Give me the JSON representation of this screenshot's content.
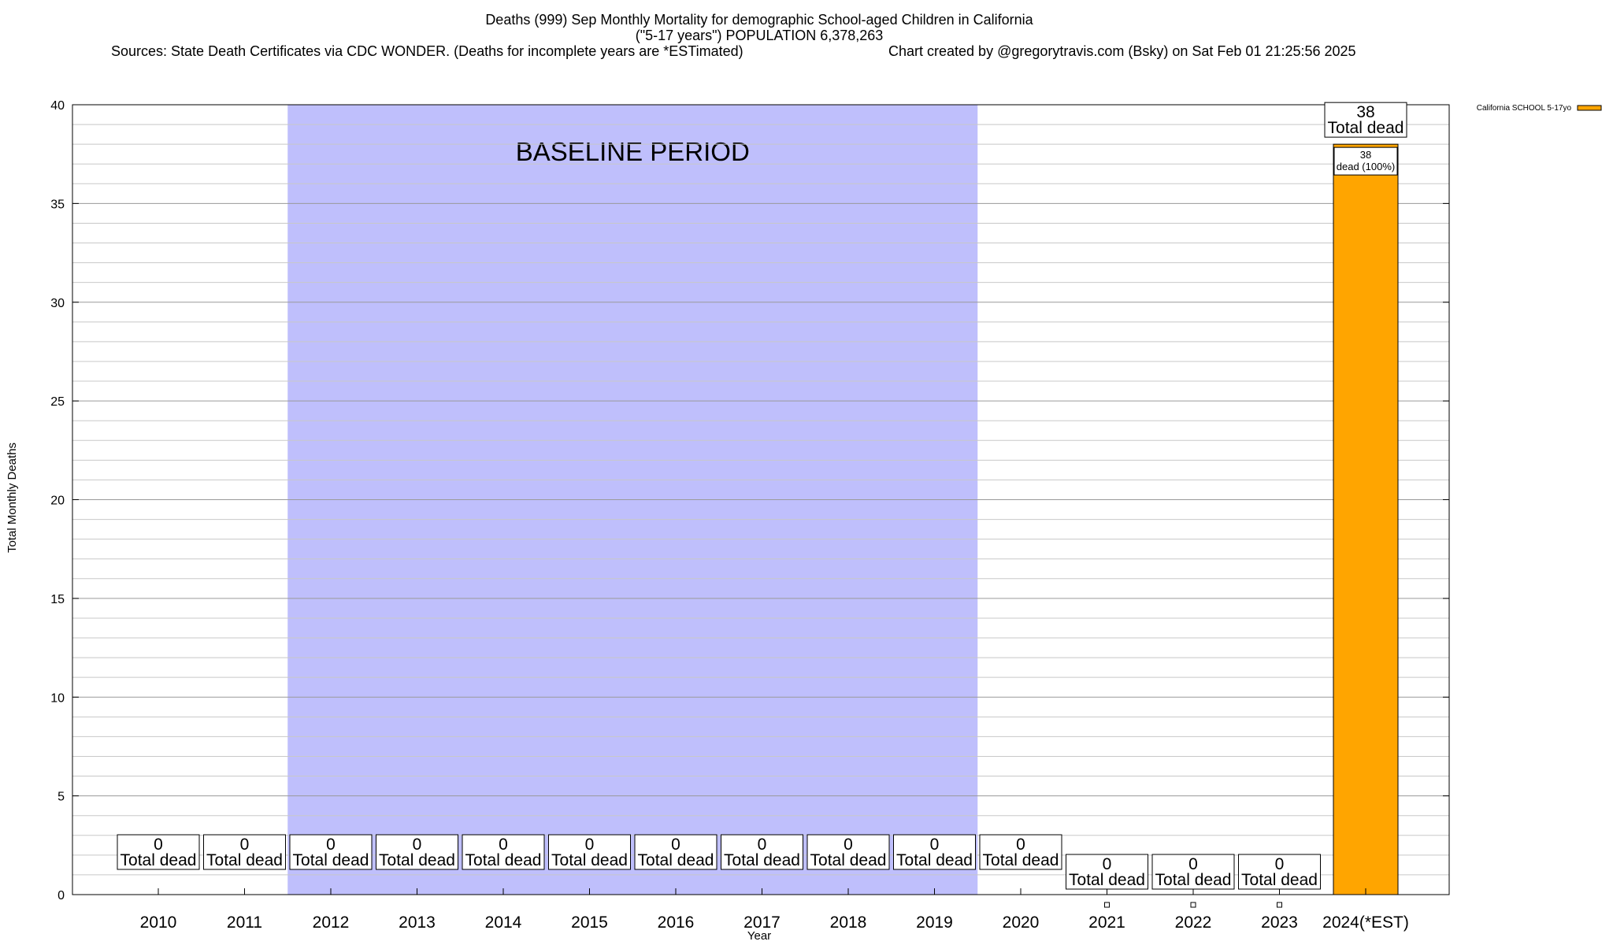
{
  "chart_data": {
    "type": "bar",
    "title_lines": [
      "Deaths (999) Sep Monthly Mortality for demographic School-aged Children in California",
      "(\"5-17 years\") POPULATION 6,378,263"
    ],
    "sources_text": "Sources: State Death Certificates via CDC WONDER. (Deaths for incomplete years are *ESTimated)",
    "credit_text": "Chart created by @gregorytravis.com (Bsky) on Sat Feb 01 21:25:56 2025",
    "xlabel": "Year",
    "ylabel": "Total Monthly Deaths",
    "ylim": [
      0,
      40
    ],
    "y_ticks": [
      0,
      5,
      10,
      15,
      20,
      25,
      30,
      35,
      40
    ],
    "categories": [
      "2010",
      "2011",
      "2012",
      "2013",
      "2014",
      "2015",
      "2016",
      "2017",
      "2018",
      "2019",
      "2020",
      "2021",
      "2022",
      "2023",
      "2024(*EST)"
    ],
    "series": [
      {
        "name": "California SCHOOL 5-17yo",
        "color": "#ffa500",
        "values": [
          0,
          0,
          0,
          0,
          0,
          0,
          0,
          0,
          0,
          0,
          0,
          0,
          0,
          0,
          38
        ]
      }
    ],
    "total_label_text": "Total dead",
    "segment_label": {
      "value": "38",
      "text": "dead (100%)"
    },
    "baseline": {
      "label": "BASELINE PERIOD",
      "from": "2012",
      "to": "2019",
      "color": "#bfbffc"
    },
    "grid": "horizontal",
    "legend_position": "top-right"
  }
}
